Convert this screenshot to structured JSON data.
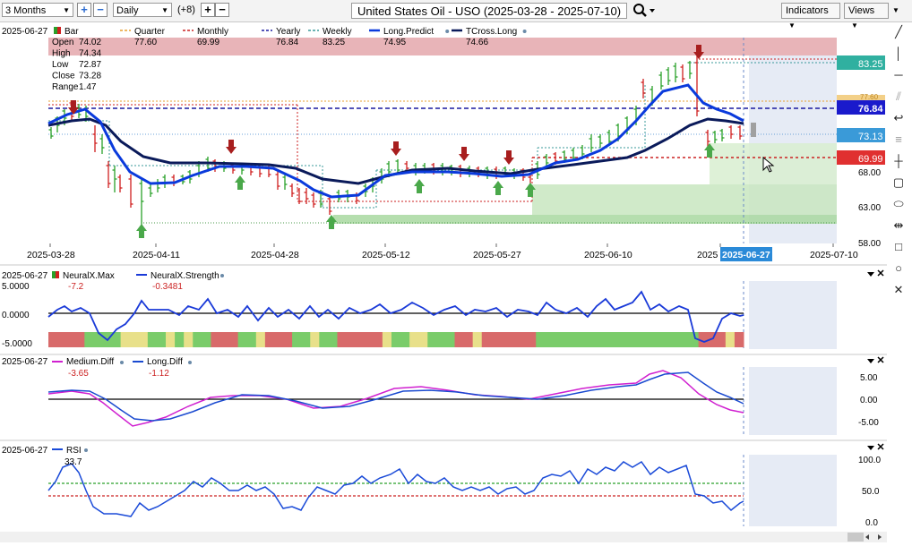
{
  "toolbar": {
    "range_select": "3 Months",
    "interval_select": "Daily",
    "offset_label": "(+8)",
    "title": "United States Oil - USO (2025-03-28 - 2025-07-10)",
    "indicators_label": "Indicators",
    "views_label": "Views"
  },
  "main_panel": {
    "date": "2025-06-27",
    "bar_label": "Bar",
    "ohlc": [
      {
        "label": "Open",
        "value": "74.02"
      },
      {
        "label": "High",
        "value": "74.34"
      },
      {
        "label": "Low",
        "value": "72.87"
      },
      {
        "label": "Close",
        "value": "73.28"
      },
      {
        "label": "Range",
        "value": "1.47"
      }
    ],
    "legend": [
      {
        "name": "Quarter",
        "value": "77.60",
        "color": "#e8a030"
      },
      {
        "name": "Monthly",
        "value": "69.99",
        "color": "#cc2222"
      },
      {
        "name": "Yearly",
        "value": "76.84",
        "color": "#1a1aa0"
      },
      {
        "name": "Weekly",
        "value": "83.25",
        "color": "#3a9a9a"
      },
      {
        "name": "Long.Predict",
        "value": "74.95",
        "color": "#0a3adc"
      },
      {
        "name": "TCross.Long",
        "value": "74.66",
        "color": "#0a1a5a"
      }
    ],
    "price_labels": [
      {
        "value": "83.25",
        "color": "#30b0a0"
      },
      {
        "value": "76.84",
        "color": "#1a1acc"
      },
      {
        "value": "73.13",
        "color": "#3a9ad8"
      },
      {
        "value": "69.99",
        "color": "#e03030"
      }
    ],
    "axis_ticks": [
      "68.00",
      "63.00",
      "58.00"
    ],
    "axis_tick_faded": "77.60",
    "x_ticks": [
      "2025-03-28",
      "2025-04-11",
      "2025-04-28",
      "2025-05-12",
      "2025-05-27",
      "2025-06-10",
      "2025",
      "2025-07-10"
    ],
    "cursor_date": "2025-06-27"
  },
  "neural_panel": {
    "date": "2025-06-27",
    "legend": [
      {
        "name": "NeuralX.Max",
        "value": "-7.2"
      },
      {
        "name": "NeuralX.Strength",
        "value": "-0.3481"
      }
    ],
    "axis_ticks": [
      "5.0000",
      "0.0000",
      "-5.0000"
    ]
  },
  "diff_panel": {
    "date": "2025-06-27",
    "legend": [
      {
        "name": "Medium.Diff",
        "value": "-3.65"
      },
      {
        "name": "Long.Diff",
        "value": "-1.12"
      }
    ],
    "axis_ticks": [
      "5.00",
      "0.00",
      "-5.00"
    ]
  },
  "rsi_panel": {
    "date": "2025-06-27",
    "legend": [
      {
        "name": "RSI",
        "value": "33.7"
      }
    ],
    "axis_ticks": [
      "100.0",
      "50.0",
      "0.0"
    ]
  },
  "colors": {
    "long_predict": "#0a3adc",
    "tcross_long": "#0a1a5a",
    "neural_strength": "#1a3ad8",
    "medium_diff": "#d020d0",
    "long_diff": "#1a4ad0",
    "rsi": "#1a4ad8"
  },
  "icons": [
    "plus-icon",
    "minus-icon",
    "search-icon",
    "line-tool-icon",
    "vertical-line-icon",
    "horizontal-line-icon",
    "channel-icon",
    "arc-icon",
    "fib-icon",
    "crosshair-icon",
    "text-icon",
    "label-icon",
    "measure-icon",
    "rectangle-icon",
    "circle-icon",
    "close-icon"
  ]
}
